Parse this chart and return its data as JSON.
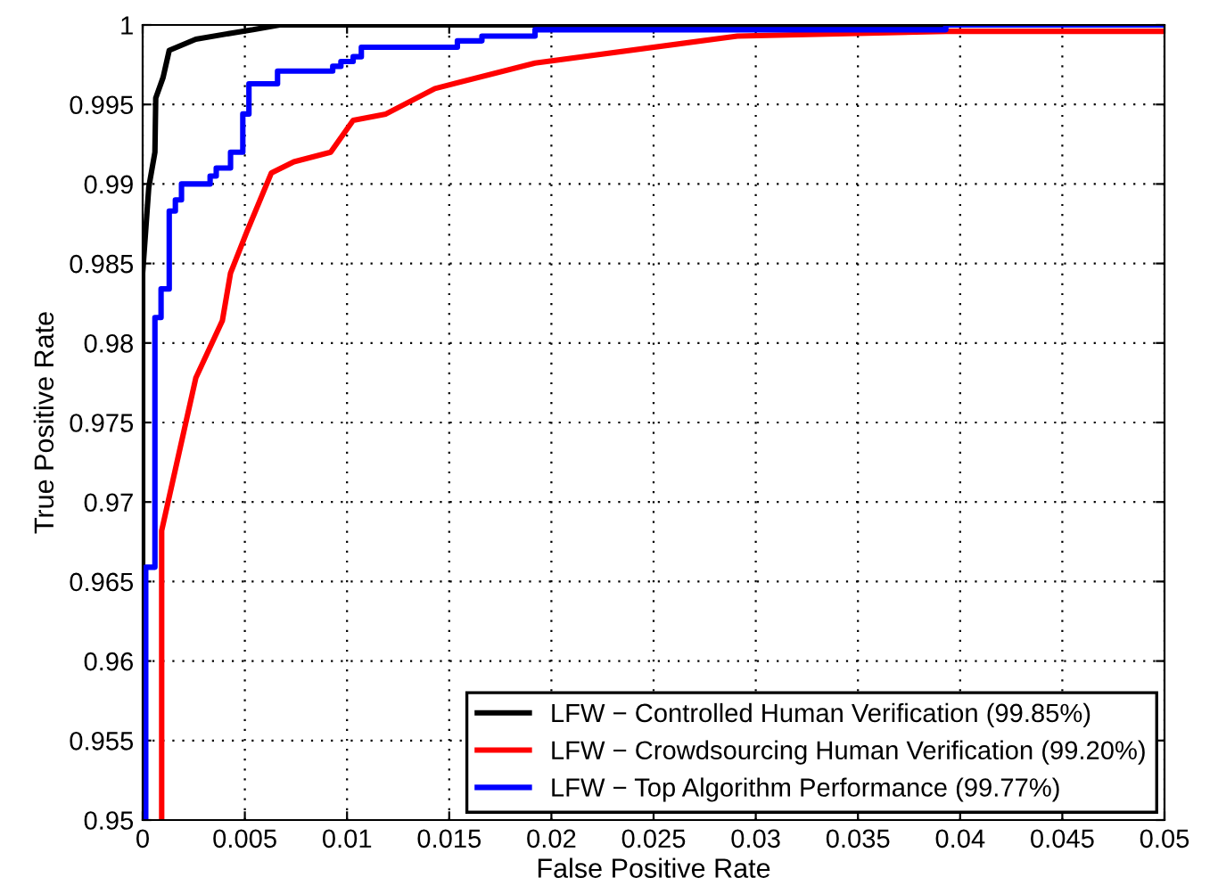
{
  "chart_data": {
    "type": "line",
    "xlabel": "False Positive Rate",
    "ylabel": "True Positive Rate",
    "xlim": [
      0,
      0.05
    ],
    "ylim": [
      0.95,
      1
    ],
    "xticks": [
      {
        "value": 0,
        "label": "0"
      },
      {
        "value": 0.005,
        "label": "0.005"
      },
      {
        "value": 0.01,
        "label": "0.01"
      },
      {
        "value": 0.015,
        "label": "0.015"
      },
      {
        "value": 0.02,
        "label": "0.02"
      },
      {
        "value": 0.025,
        "label": "0.025"
      },
      {
        "value": 0.03,
        "label": "0.03"
      },
      {
        "value": 0.035,
        "label": "0.035"
      },
      {
        "value": 0.04,
        "label": "0.04"
      },
      {
        "value": 0.045,
        "label": "0.045"
      },
      {
        "value": 0.05,
        "label": "0.05"
      }
    ],
    "yticks": [
      0.95,
      0.955,
      0.96,
      0.965,
      0.97,
      0.975,
      0.98,
      0.985,
      0.99,
      0.995,
      {
        "value": 1,
        "label": "1"
      }
    ],
    "grid": true,
    "legend": "bottom right",
    "line_style": "solid",
    "marker": "none",
    "series": [
      {
        "name": "LFW − Controlled Human Verification (99.85%)",
        "color": "#000000",
        "x": [
          0,
          0,
          0.0003,
          0.0006,
          0.00064,
          0.001,
          0.0013,
          0.0026,
          0.0044,
          0.0054,
          0.0067,
          0.05
        ],
        "values": [
          0.95,
          0.9844,
          0.9898,
          0.992,
          0.9954,
          0.9967,
          0.9984,
          0.9991,
          0.9995,
          0.9997,
          1,
          1
        ]
      },
      {
        "name": "LFW − Crowdsourcing Human Verification (99.20%)",
        "color": "#ff0000",
        "x": [
          0.00093,
          0.00093,
          0.0026,
          0.0039,
          0.0043,
          0.0051,
          0.0063,
          0.0074,
          0.0092,
          0.0103,
          0.0119,
          0.0143,
          0.0192,
          0.0291,
          0.0393,
          0.05
        ],
        "values": [
          0.95,
          0.9682,
          0.9778,
          0.9814,
          0.9844,
          0.987,
          0.9907,
          0.9914,
          0.992,
          0.994,
          0.9944,
          0.996,
          0.9976,
          0.9993,
          0.9996,
          0.9996
        ]
      },
      {
        "name": "LFW − Top Algorithm Performance (99.77%)",
        "color": "#0000ff",
        "x": [
          0.00015,
          0.00015,
          0.0006,
          0.0006,
          0.0009,
          0.0009,
          0.0013,
          0.0013,
          0.0016,
          0.0016,
          0.0019,
          0.0019,
          0.0033,
          0.0033,
          0.0036,
          0.0036,
          0.0043,
          0.0043,
          0.0049,
          0.0049,
          0.0052,
          0.0052,
          0.0066,
          0.0066,
          0.0093,
          0.0093,
          0.0097,
          0.0097,
          0.0103,
          0.0103,
          0.0107,
          0.0107,
          0.0154,
          0.0154,
          0.0166,
          0.0166,
          0.0192,
          0.0192,
          0.0393,
          0.0393,
          0.05
        ],
        "values": [
          0.95,
          0.9659,
          0.9659,
          0.9816,
          0.9816,
          0.9834,
          0.9834,
          0.9883,
          0.9883,
          0.989,
          0.989,
          0.99,
          0.99,
          0.9905,
          0.9905,
          0.991,
          0.991,
          0.992,
          0.992,
          0.9944,
          0.9944,
          0.9963,
          0.9963,
          0.9971,
          0.9971,
          0.9974,
          0.9974,
          0.9977,
          0.9977,
          0.998,
          0.998,
          0.9986,
          0.9986,
          0.999,
          0.999,
          0.9993,
          0.9993,
          0.9997,
          0.9997,
          1,
          1
        ]
      }
    ]
  }
}
